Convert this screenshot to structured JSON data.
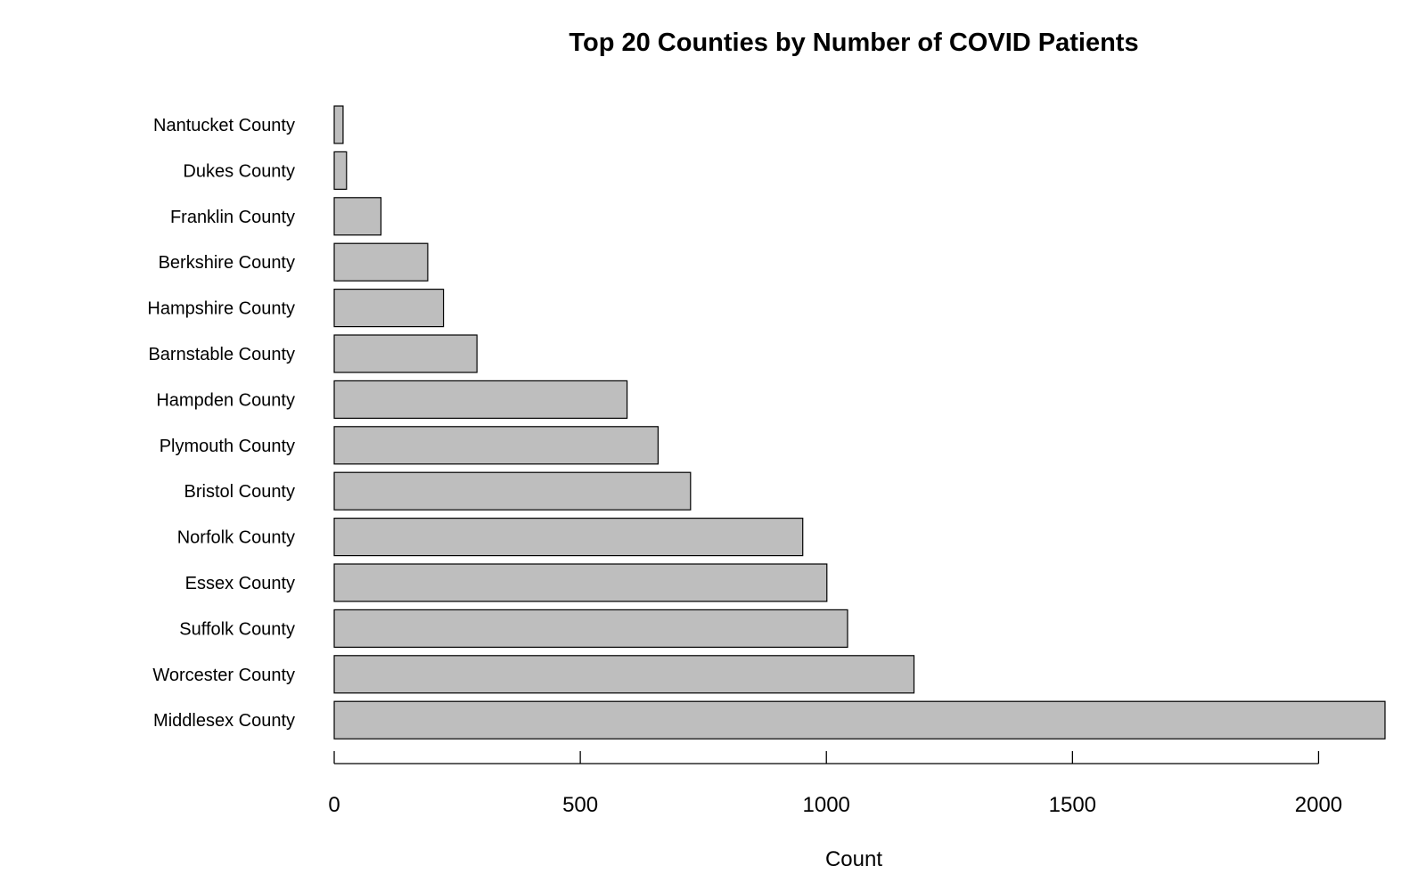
{
  "chart_data": {
    "type": "bar",
    "orientation": "horizontal",
    "title": "Top 20 Counties by Number of COVID Patients",
    "xlabel": "Count",
    "ylabel": "",
    "categories": [
      "Nantucket County",
      "Dukes County",
      "Franklin County",
      "Berkshire County",
      "Hampshire County",
      "Barnstable County",
      "Hampden County",
      "Plymouth County",
      "Bristol County",
      "Norfolk County",
      "Essex County",
      "Suffolk County",
      "Worcester County",
      "Middlesex County"
    ],
    "values": [
      18,
      25,
      95,
      190,
      222,
      290,
      595,
      658,
      724,
      952,
      1001,
      1043,
      1178,
      2135
    ],
    "xlim": [
      0,
      2135
    ],
    "ticks": [
      0,
      500,
      1000,
      1500,
      2000
    ],
    "tick_labels": [
      "0",
      "500",
      "1000",
      "1500",
      "2000"
    ],
    "grid": false,
    "legend": "none",
    "bar_color": "#bebebe",
    "bar_border_color": "#000000"
  }
}
